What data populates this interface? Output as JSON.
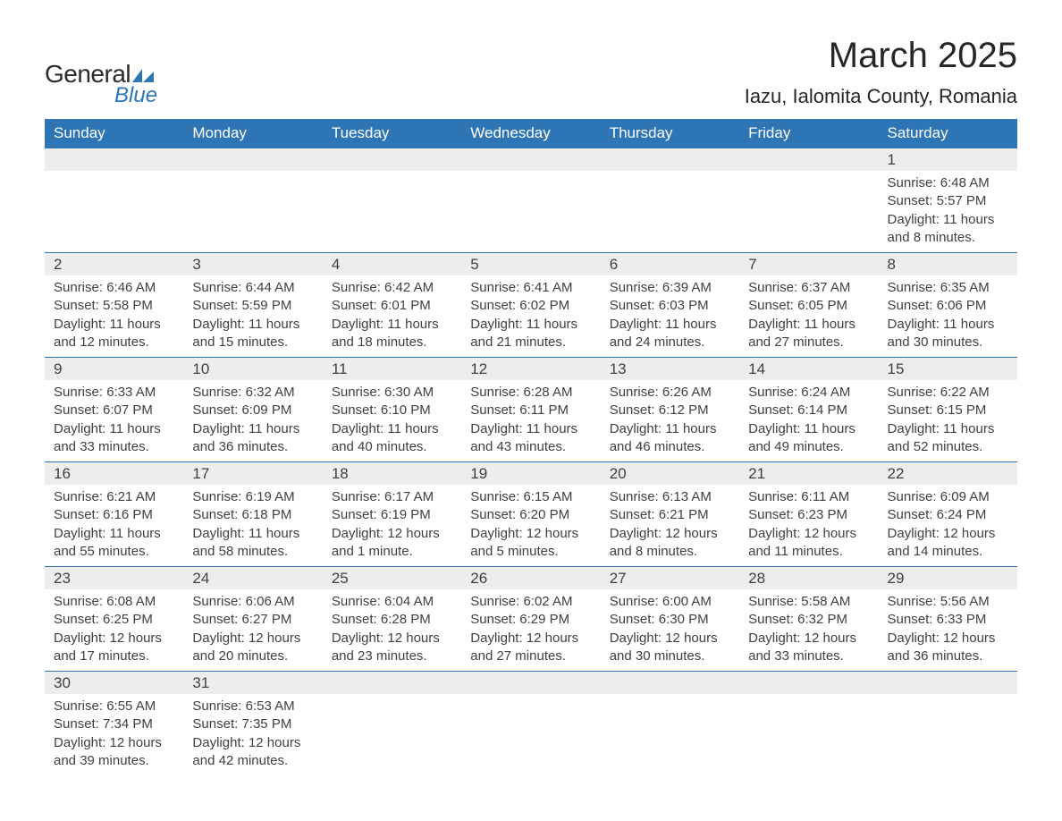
{
  "brand": {
    "general": "General",
    "blue": "Blue"
  },
  "title": "March 2025",
  "location": "Iazu, Ialomita County, Romania",
  "colors": {
    "header_bg": "#2e75b6",
    "header_text": "#ffffff",
    "daynum_bg": "#ededed",
    "cell_text": "#404040",
    "rule": "#2e75b6",
    "title_text": "#262626",
    "logo_blue": "#2e75b6"
  },
  "weekdays": [
    "Sunday",
    "Monday",
    "Tuesday",
    "Wednesday",
    "Thursday",
    "Friday",
    "Saturday"
  ],
  "weeks": [
    [
      null,
      null,
      null,
      null,
      null,
      null,
      {
        "n": "1",
        "sunrise": "Sunrise: 6:48 AM",
        "sunset": "Sunset: 5:57 PM",
        "day1": "Daylight: 11 hours",
        "day2": "and 8 minutes."
      }
    ],
    [
      {
        "n": "2",
        "sunrise": "Sunrise: 6:46 AM",
        "sunset": "Sunset: 5:58 PM",
        "day1": "Daylight: 11 hours",
        "day2": "and 12 minutes."
      },
      {
        "n": "3",
        "sunrise": "Sunrise: 6:44 AM",
        "sunset": "Sunset: 5:59 PM",
        "day1": "Daylight: 11 hours",
        "day2": "and 15 minutes."
      },
      {
        "n": "4",
        "sunrise": "Sunrise: 6:42 AM",
        "sunset": "Sunset: 6:01 PM",
        "day1": "Daylight: 11 hours",
        "day2": "and 18 minutes."
      },
      {
        "n": "5",
        "sunrise": "Sunrise: 6:41 AM",
        "sunset": "Sunset: 6:02 PM",
        "day1": "Daylight: 11 hours",
        "day2": "and 21 minutes."
      },
      {
        "n": "6",
        "sunrise": "Sunrise: 6:39 AM",
        "sunset": "Sunset: 6:03 PM",
        "day1": "Daylight: 11 hours",
        "day2": "and 24 minutes."
      },
      {
        "n": "7",
        "sunrise": "Sunrise: 6:37 AM",
        "sunset": "Sunset: 6:05 PM",
        "day1": "Daylight: 11 hours",
        "day2": "and 27 minutes."
      },
      {
        "n": "8",
        "sunrise": "Sunrise: 6:35 AM",
        "sunset": "Sunset: 6:06 PM",
        "day1": "Daylight: 11 hours",
        "day2": "and 30 minutes."
      }
    ],
    [
      {
        "n": "9",
        "sunrise": "Sunrise: 6:33 AM",
        "sunset": "Sunset: 6:07 PM",
        "day1": "Daylight: 11 hours",
        "day2": "and 33 minutes."
      },
      {
        "n": "10",
        "sunrise": "Sunrise: 6:32 AM",
        "sunset": "Sunset: 6:09 PM",
        "day1": "Daylight: 11 hours",
        "day2": "and 36 minutes."
      },
      {
        "n": "11",
        "sunrise": "Sunrise: 6:30 AM",
        "sunset": "Sunset: 6:10 PM",
        "day1": "Daylight: 11 hours",
        "day2": "and 40 minutes."
      },
      {
        "n": "12",
        "sunrise": "Sunrise: 6:28 AM",
        "sunset": "Sunset: 6:11 PM",
        "day1": "Daylight: 11 hours",
        "day2": "and 43 minutes."
      },
      {
        "n": "13",
        "sunrise": "Sunrise: 6:26 AM",
        "sunset": "Sunset: 6:12 PM",
        "day1": "Daylight: 11 hours",
        "day2": "and 46 minutes."
      },
      {
        "n": "14",
        "sunrise": "Sunrise: 6:24 AM",
        "sunset": "Sunset: 6:14 PM",
        "day1": "Daylight: 11 hours",
        "day2": "and 49 minutes."
      },
      {
        "n": "15",
        "sunrise": "Sunrise: 6:22 AM",
        "sunset": "Sunset: 6:15 PM",
        "day1": "Daylight: 11 hours",
        "day2": "and 52 minutes."
      }
    ],
    [
      {
        "n": "16",
        "sunrise": "Sunrise: 6:21 AM",
        "sunset": "Sunset: 6:16 PM",
        "day1": "Daylight: 11 hours",
        "day2": "and 55 minutes."
      },
      {
        "n": "17",
        "sunrise": "Sunrise: 6:19 AM",
        "sunset": "Sunset: 6:18 PM",
        "day1": "Daylight: 11 hours",
        "day2": "and 58 minutes."
      },
      {
        "n": "18",
        "sunrise": "Sunrise: 6:17 AM",
        "sunset": "Sunset: 6:19 PM",
        "day1": "Daylight: 12 hours",
        "day2": "and 1 minute."
      },
      {
        "n": "19",
        "sunrise": "Sunrise: 6:15 AM",
        "sunset": "Sunset: 6:20 PM",
        "day1": "Daylight: 12 hours",
        "day2": "and 5 minutes."
      },
      {
        "n": "20",
        "sunrise": "Sunrise: 6:13 AM",
        "sunset": "Sunset: 6:21 PM",
        "day1": "Daylight: 12 hours",
        "day2": "and 8 minutes."
      },
      {
        "n": "21",
        "sunrise": "Sunrise: 6:11 AM",
        "sunset": "Sunset: 6:23 PM",
        "day1": "Daylight: 12 hours",
        "day2": "and 11 minutes."
      },
      {
        "n": "22",
        "sunrise": "Sunrise: 6:09 AM",
        "sunset": "Sunset: 6:24 PM",
        "day1": "Daylight: 12 hours",
        "day2": "and 14 minutes."
      }
    ],
    [
      {
        "n": "23",
        "sunrise": "Sunrise: 6:08 AM",
        "sunset": "Sunset: 6:25 PM",
        "day1": "Daylight: 12 hours",
        "day2": "and 17 minutes."
      },
      {
        "n": "24",
        "sunrise": "Sunrise: 6:06 AM",
        "sunset": "Sunset: 6:27 PM",
        "day1": "Daylight: 12 hours",
        "day2": "and 20 minutes."
      },
      {
        "n": "25",
        "sunrise": "Sunrise: 6:04 AM",
        "sunset": "Sunset: 6:28 PM",
        "day1": "Daylight: 12 hours",
        "day2": "and 23 minutes."
      },
      {
        "n": "26",
        "sunrise": "Sunrise: 6:02 AM",
        "sunset": "Sunset: 6:29 PM",
        "day1": "Daylight: 12 hours",
        "day2": "and 27 minutes."
      },
      {
        "n": "27",
        "sunrise": "Sunrise: 6:00 AM",
        "sunset": "Sunset: 6:30 PM",
        "day1": "Daylight: 12 hours",
        "day2": "and 30 minutes."
      },
      {
        "n": "28",
        "sunrise": "Sunrise: 5:58 AM",
        "sunset": "Sunset: 6:32 PM",
        "day1": "Daylight: 12 hours",
        "day2": "and 33 minutes."
      },
      {
        "n": "29",
        "sunrise": "Sunrise: 5:56 AM",
        "sunset": "Sunset: 6:33 PM",
        "day1": "Daylight: 12 hours",
        "day2": "and 36 minutes."
      }
    ],
    [
      {
        "n": "30",
        "sunrise": "Sunrise: 6:55 AM",
        "sunset": "Sunset: 7:34 PM",
        "day1": "Daylight: 12 hours",
        "day2": "and 39 minutes."
      },
      {
        "n": "31",
        "sunrise": "Sunrise: 6:53 AM",
        "sunset": "Sunset: 7:35 PM",
        "day1": "Daylight: 12 hours",
        "day2": "and 42 minutes."
      },
      null,
      null,
      null,
      null,
      null
    ]
  ]
}
